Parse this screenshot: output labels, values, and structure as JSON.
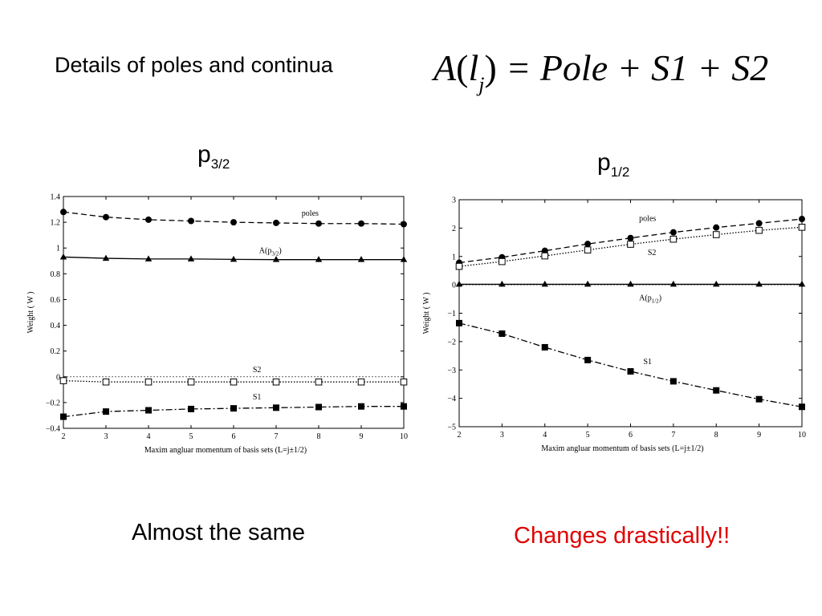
{
  "heading": "Details of poles and continua",
  "formula": {
    "A": "A",
    "l": "l",
    "j": "j",
    "eq": "= Pole + S1 + S2"
  },
  "left_panel": {
    "label_main": "p",
    "label_sub": "3/2",
    "caption": "Almost the same"
  },
  "right_panel": {
    "label_main": "p",
    "label_sub": "1/2",
    "caption": "Changes drastically!!",
    "caption_color": "#e00000"
  },
  "chart_data": [
    {
      "type": "line",
      "xlabel": "Maxim angluar momentum of basis sets (L=j±1/2)",
      "ylabel": "Weight ( W )",
      "xlim": [
        2,
        10
      ],
      "ylim": [
        -0.4,
        1.4
      ],
      "yticks": [
        -0.4,
        -0.2,
        0,
        0.2,
        0.4,
        0.6,
        0.8,
        1.0,
        1.2,
        1.4
      ],
      "ytick_labels": [
        "−0.4",
        "−0.2",
        "0",
        "0.2",
        "0.4",
        "0.6",
        "0.8",
        "1",
        "1.2",
        "1.4"
      ],
      "x": [
        2,
        3,
        4,
        5,
        6,
        7,
        8,
        9,
        10
      ],
      "series": [
        {
          "name": "poles",
          "marker": "circle",
          "style": "dashed",
          "values": [
            1.28,
            1.24,
            1.22,
            1.21,
            1.2,
            1.195,
            1.19,
            1.19,
            1.185
          ],
          "label_at": [
            7.6,
            1.25
          ]
        },
        {
          "name": "A(p3/2)",
          "marker": "triangle",
          "style": "solid",
          "values": [
            0.93,
            0.92,
            0.915,
            0.915,
            0.912,
            0.91,
            0.91,
            0.91,
            0.91
          ],
          "label_at": [
            6.6,
            0.96
          ]
        },
        {
          "name": "S2",
          "marker": "open-square",
          "style": "dotted",
          "values": [
            -0.03,
            -0.04,
            -0.04,
            -0.04,
            -0.04,
            -0.04,
            -0.04,
            -0.04,
            -0.04
          ],
          "label_at": [
            6.45,
            0.035
          ]
        },
        {
          "name": "S1",
          "marker": "square",
          "style": "dashdot",
          "values": [
            -0.31,
            -0.27,
            -0.26,
            -0.25,
            -0.245,
            -0.24,
            -0.235,
            -0.23,
            -0.23
          ],
          "label_at": [
            6.45,
            -0.175
          ]
        }
      ]
    },
    {
      "type": "line",
      "xlabel": "Maxim angluar momentum of basis sets (L=j±1/2)",
      "ylabel": "Weight ( W )",
      "xlim": [
        2,
        10
      ],
      "ylim": [
        -5,
        3
      ],
      "yticks": [
        -5,
        -4,
        -3,
        -2,
        -1,
        0,
        1,
        2,
        3
      ],
      "ytick_labels": [
        "−5",
        "−4",
        "−3",
        "−2",
        "−1",
        "0",
        "1",
        "2",
        "3"
      ],
      "x": [
        2,
        3,
        4,
        5,
        6,
        7,
        8,
        9,
        10
      ],
      "series": [
        {
          "name": "poles",
          "marker": "circle",
          "style": "dashed",
          "values": [
            0.78,
            0.97,
            1.2,
            1.44,
            1.65,
            1.85,
            2.02,
            2.17,
            2.32
          ],
          "label_at": [
            6.2,
            2.25
          ]
        },
        {
          "name": "S2",
          "marker": "open-square",
          "style": "dotted",
          "values": [
            0.65,
            0.82,
            1.02,
            1.23,
            1.43,
            1.61,
            1.77,
            1.92,
            2.03
          ],
          "label_at": [
            6.4,
            1.05
          ]
        },
        {
          "name": "A(p1/2)",
          "marker": "triangle",
          "style": "solid",
          "values": [
            0.02,
            0.02,
            0.02,
            0.02,
            0.02,
            0.02,
            0.02,
            0.02,
            0.02
          ],
          "label_at": [
            6.2,
            -0.55
          ]
        },
        {
          "name": "S1",
          "marker": "square",
          "style": "dashdot",
          "values": [
            -1.35,
            -1.72,
            -2.2,
            -2.65,
            -3.05,
            -3.4,
            -3.72,
            -4.03,
            -4.3
          ],
          "label_at": [
            6.3,
            -2.8
          ]
        }
      ]
    }
  ]
}
